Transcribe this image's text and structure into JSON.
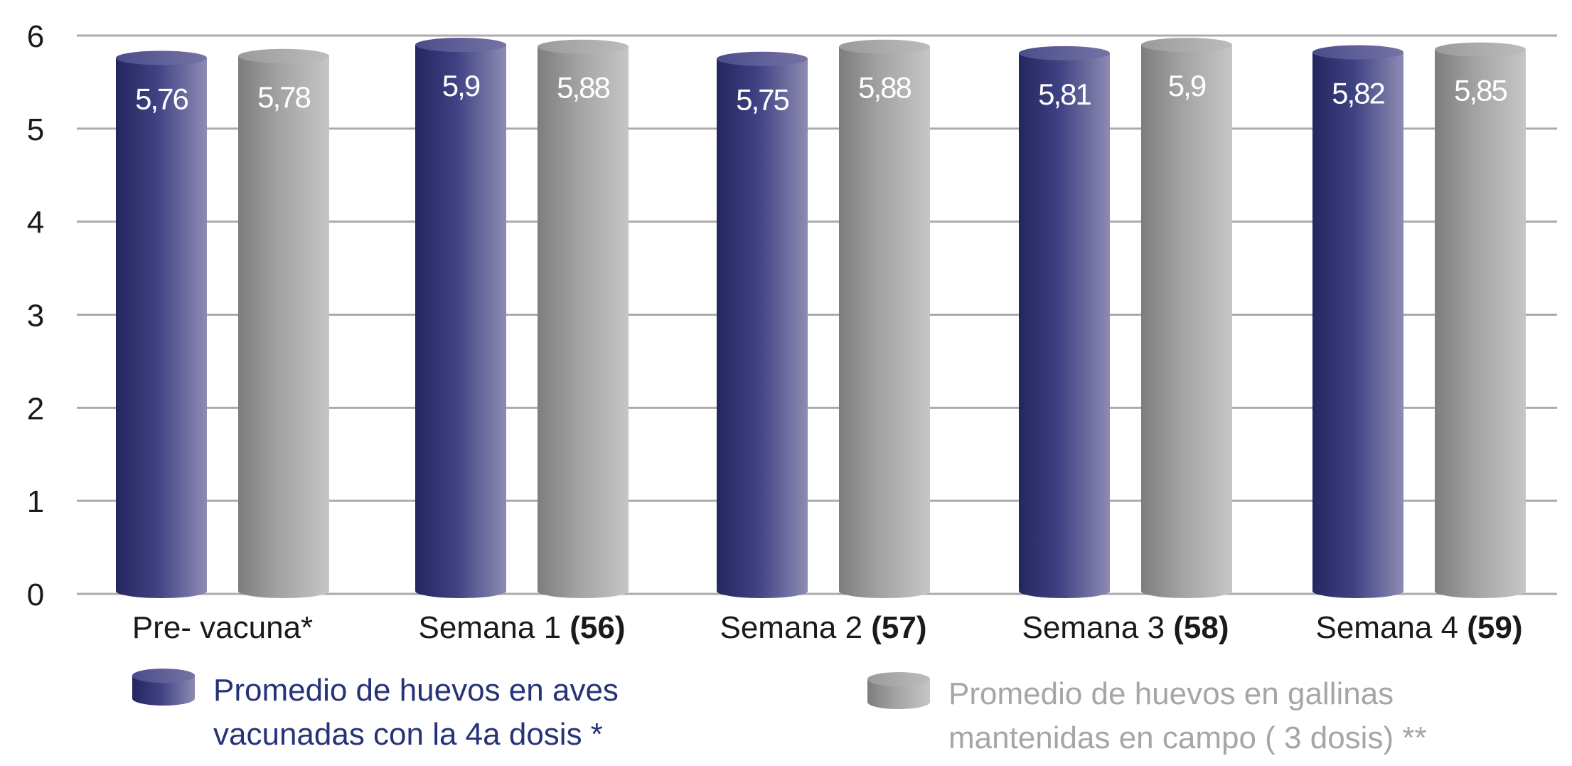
{
  "chart_data": {
    "type": "bar",
    "style": "3d-cylinder",
    "categories": [
      {
        "name": "Pre- vacuna*",
        "suffix": ""
      },
      {
        "name": "Semana 1 ",
        "suffix": "(56)"
      },
      {
        "name": "Semana 2 ",
        "suffix": "(57)"
      },
      {
        "name": "Semana 3 ",
        "suffix": "(58)"
      },
      {
        "name": "Semana 4 ",
        "suffix": "(59)"
      }
    ],
    "series": [
      {
        "name": "Promedio de huevos en aves\nvacunadas con la 4a dosis *",
        "color": "#2b2d6e",
        "values": [
          5.76,
          5.9,
          5.75,
          5.81,
          5.82
        ],
        "labels": [
          "5,76",
          "5,9",
          "5,75",
          "5,81",
          "5,82"
        ]
      },
      {
        "name": "Promedio de huevos en gallinas\nmantenidas en campo ( 3 dosis) **",
        "color": "#8c8c8c",
        "values": [
          5.78,
          5.88,
          5.88,
          5.9,
          5.85
        ],
        "labels": [
          "5,78",
          "5,88",
          "5,88",
          "5,9",
          "5,85"
        ]
      }
    ],
    "ylim": [
      0,
      6
    ],
    "yticks": [
      "0",
      "1",
      "2",
      "3",
      "4",
      "5",
      "6"
    ],
    "grid": true,
    "legend_position": "bottom",
    "title": "",
    "xlabel": "",
    "ylabel": ""
  }
}
